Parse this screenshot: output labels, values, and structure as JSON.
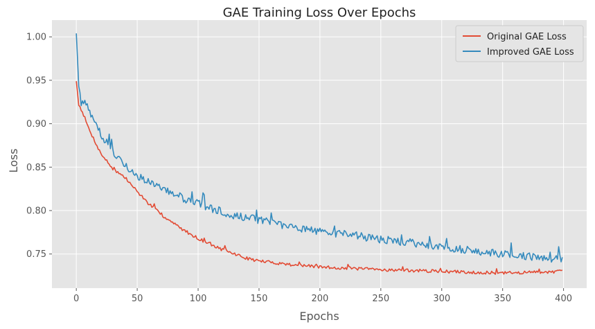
{
  "chart_data": {
    "type": "line",
    "title": "GAE Training Loss Over Epochs",
    "xlabel": "Epochs",
    "ylabel": "Loss",
    "xlim": [
      -20,
      419
    ],
    "ylim": [
      0.7107,
      1.0193
    ],
    "xticks": [
      0,
      50,
      100,
      150,
      200,
      250,
      300,
      350,
      400
    ],
    "yticks": [
      0.75,
      0.8,
      0.85,
      0.9,
      0.95,
      1.0
    ],
    "grid": true,
    "legend_position": "top-right",
    "n_epochs": 400,
    "series": [
      {
        "name": "Original GAE Loss",
        "color": "#E24A33",
        "keypoints": [
          [
            0,
            0.949
          ],
          [
            2,
            0.922
          ],
          [
            5,
            0.914
          ],
          [
            10,
            0.895
          ],
          [
            20,
            0.866
          ],
          [
            30,
            0.848
          ],
          [
            40,
            0.838
          ],
          [
            50,
            0.822
          ],
          [
            60,
            0.807
          ],
          [
            70,
            0.795
          ],
          [
            80,
            0.785
          ],
          [
            90,
            0.776
          ],
          [
            100,
            0.768
          ],
          [
            110,
            0.761
          ],
          [
            120,
            0.755
          ],
          [
            130,
            0.75
          ],
          [
            140,
            0.745
          ],
          [
            150,
            0.742
          ],
          [
            175,
            0.738
          ],
          [
            200,
            0.735
          ],
          [
            250,
            0.732
          ],
          [
            300,
            0.73
          ],
          [
            350,
            0.728
          ],
          [
            399,
            0.73
          ]
        ],
        "noise": 0.0018
      },
      {
        "name": "Improved GAE Loss",
        "color": "#348ABD",
        "keypoints": [
          [
            0,
            1.004
          ],
          [
            2,
            0.945
          ],
          [
            4,
            0.922
          ],
          [
            8,
            0.925
          ],
          [
            15,
            0.9
          ],
          [
            25,
            0.878
          ],
          [
            35,
            0.86
          ],
          [
            50,
            0.84
          ],
          [
            60,
            0.832
          ],
          [
            75,
            0.822
          ],
          [
            90,
            0.813
          ],
          [
            100,
            0.808
          ],
          [
            125,
            0.796
          ],
          [
            150,
            0.789
          ],
          [
            175,
            0.782
          ],
          [
            200,
            0.776
          ],
          [
            225,
            0.772
          ],
          [
            250,
            0.767
          ],
          [
            275,
            0.763
          ],
          [
            300,
            0.758
          ],
          [
            325,
            0.754
          ],
          [
            350,
            0.75
          ],
          [
            375,
            0.747
          ],
          [
            399,
            0.744
          ]
        ],
        "noise": 0.0045
      }
    ]
  }
}
